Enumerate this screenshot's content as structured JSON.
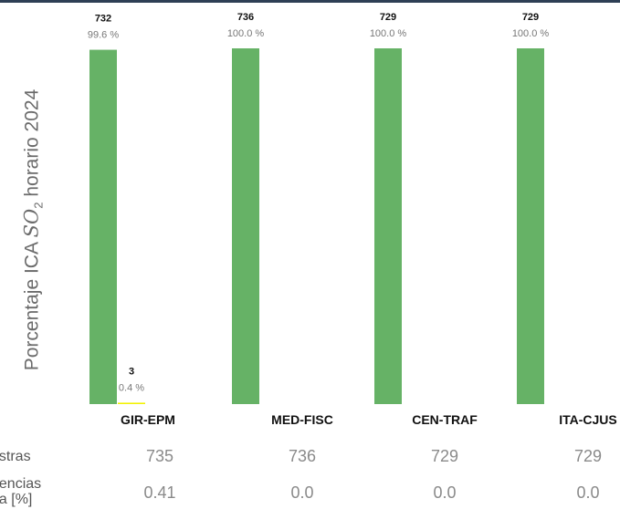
{
  "chart_data": {
    "type": "bar",
    "ylabel_parts": [
      "Porcentaje ICA ",
      "SO",
      "2",
      " horario 2024"
    ],
    "categories": [
      "GIR-EPM",
      "MED-FISC",
      "CEN-TRAF",
      "ITA-CJUS"
    ],
    "ylim": [
      0,
      100
    ],
    "series": [
      {
        "color": "#66b266",
        "counts": [
          732,
          736,
          729,
          729
        ],
        "values": [
          99.6,
          100.0,
          100.0,
          100.0
        ],
        "labels": [
          "99.6 %",
          "100.0 %",
          "100.0 %",
          "100.0 %"
        ]
      },
      {
        "color": "#f2f200",
        "counts": [
          3,
          null,
          null,
          null
        ],
        "values": [
          0.4,
          0,
          0,
          0
        ],
        "labels": [
          "0.4 %",
          null,
          null,
          null
        ]
      }
    ],
    "grid": false
  },
  "table": {
    "row1_label": "estras",
    "row2_label_line1": "dencias",
    "row2_label_line2": "na [%]",
    "row1_values": [
      "735",
      "736",
      "729",
      "729"
    ],
    "row2_values": [
      "0.41",
      "0.0",
      "0.0",
      "0.0"
    ]
  }
}
